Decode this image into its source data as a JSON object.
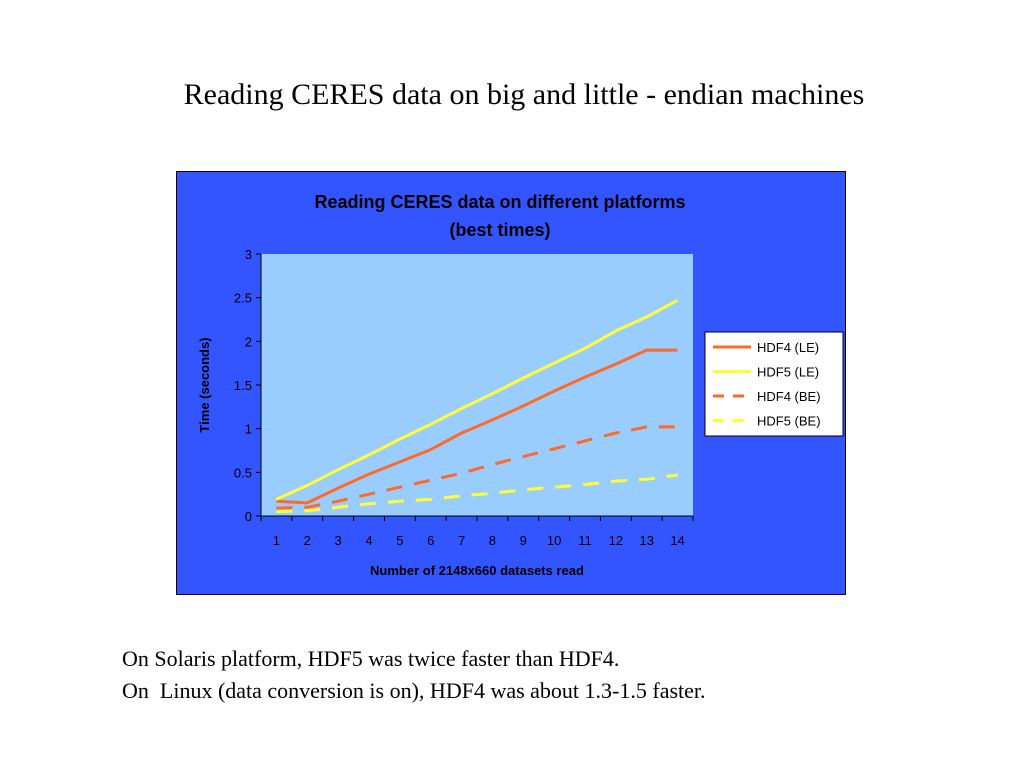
{
  "slide": {
    "title": "Reading CERES data on big and little - endian machines",
    "notes": [
      "On Solaris platform, HDF5 was twice faster than HDF4.",
      "On  Linux (data conversion is on), HDF4 was about 1.3-1.5 faster."
    ]
  },
  "colors": {
    "panel": "#3355ff",
    "plot_area": "#99ccff",
    "hdf4": "#ff6a2a",
    "hdf5": "#ffff33"
  },
  "chart_data": {
    "type": "line",
    "title": "Reading CERES data on different platforms",
    "subtitle": "(best times)",
    "xlabel": "Number of 2148x660 datasets read",
    "ylabel": "Time (seconds)",
    "x": [
      1,
      2,
      3,
      4,
      5,
      6,
      7,
      8,
      9,
      10,
      11,
      12,
      13,
      14
    ],
    "x_tick_labels": [
      "1",
      "2",
      "3",
      "4",
      "5",
      "6",
      "7",
      "8",
      "9",
      "10",
      "11",
      "12",
      "13",
      "14"
    ],
    "y_tick_labels": [
      "0",
      "0.5",
      "1",
      "1.5",
      "2",
      "2.5",
      "3"
    ],
    "ylim": [
      0,
      3
    ],
    "legend_position": "right",
    "series": [
      {
        "name": "HDF4 (LE)",
        "style": "solid",
        "color": "#ff6a2a",
        "values": [
          0.17,
          0.15,
          0.32,
          0.48,
          0.62,
          0.76,
          0.95,
          1.1,
          1.26,
          1.43,
          1.59,
          1.74,
          1.9,
          1.9
        ]
      },
      {
        "name": "HDF5 (LE)",
        "style": "solid",
        "color": "#ffff33",
        "values": [
          0.19,
          0.35,
          0.53,
          0.7,
          0.88,
          1.05,
          1.23,
          1.4,
          1.58,
          1.75,
          1.92,
          2.12,
          2.28,
          2.47
        ]
      },
      {
        "name": "HDF4 (BE)",
        "style": "dashed",
        "color": "#ff6a2a",
        "values": [
          0.09,
          0.1,
          0.17,
          0.25,
          0.33,
          0.41,
          0.49,
          0.59,
          0.68,
          0.77,
          0.86,
          0.95,
          1.02,
          1.02
        ]
      },
      {
        "name": "HDF5 (BE)",
        "style": "dashed",
        "color": "#ffff33",
        "values": [
          0.05,
          0.06,
          0.1,
          0.14,
          0.17,
          0.19,
          0.23,
          0.26,
          0.3,
          0.33,
          0.36,
          0.4,
          0.42,
          0.47
        ]
      }
    ]
  }
}
